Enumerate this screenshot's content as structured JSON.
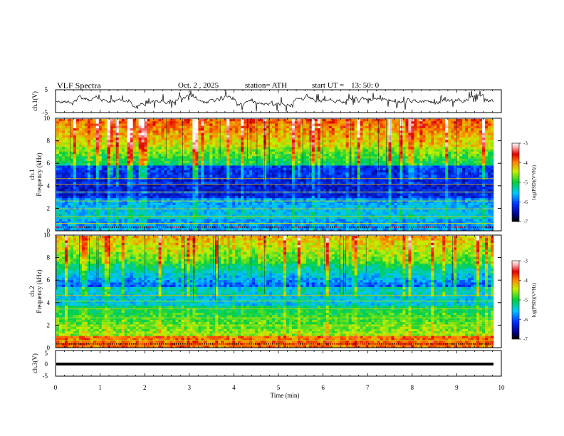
{
  "header": {
    "title": "VLF  Spectra",
    "date": "Oct. 2  , 2025",
    "station": "station= ATH",
    "start_label": "start  UT  =",
    "start_time": "13: 50: 0"
  },
  "chart_data": [
    {
      "type": "line",
      "panel": "ch1-waveform",
      "ylabel": "ch.1(V)",
      "ylim": [
        -5,
        5
      ],
      "yticks": [
        "5",
        "-5"
      ],
      "trace": "noisy voltage signal around 0 V",
      "xlim": [
        0,
        10
      ]
    },
    {
      "type": "heatmap",
      "panel": "ch1-spectrogram",
      "ylabel_top": "ch.1",
      "ylabel": "Frequency  (kHz)",
      "ylim": [
        0,
        10
      ],
      "yticks": [
        "0",
        "2",
        "4",
        "6",
        "8",
        "10"
      ],
      "xlim": [
        0,
        10
      ],
      "colorbar": {
        "label": "log(PSD)(V²/Hz)",
        "range": [
          -7,
          -3
        ],
        "ticks": [
          "-3",
          "-4",
          "-5",
          "-6",
          "-7"
        ]
      }
    },
    {
      "type": "heatmap",
      "panel": "ch2-spectrogram",
      "ylabel_top": "ch.2",
      "ylabel": "Frequency  (kHz)",
      "ylim": [
        0,
        10
      ],
      "yticks": [
        "0",
        "2",
        "4",
        "6",
        "8",
        "10"
      ],
      "xlim": [
        0,
        10
      ],
      "colorbar": {
        "label": "log(PSD)(V²/Hz)",
        "range": [
          -7,
          -3
        ],
        "ticks": [
          "-3",
          "-4",
          "-5",
          "-6",
          "-7"
        ]
      }
    },
    {
      "type": "line",
      "panel": "ch3-waveform",
      "ylabel": "ch.3(V)",
      "ylim": [
        -5,
        5
      ],
      "yticks": [
        "5",
        "0",
        "-5"
      ],
      "trace": "flat signal near -1 V",
      "level": -1,
      "xlabel": "Time  (min)",
      "xlim": [
        0,
        10
      ],
      "xticks": [
        "0",
        "1",
        "2",
        "3",
        "4",
        "5",
        "6",
        "7",
        "8",
        "9",
        "10"
      ]
    }
  ],
  "colors": {
    "low": "#000080",
    "mid": "#00c000",
    "high": "#ff0000"
  }
}
